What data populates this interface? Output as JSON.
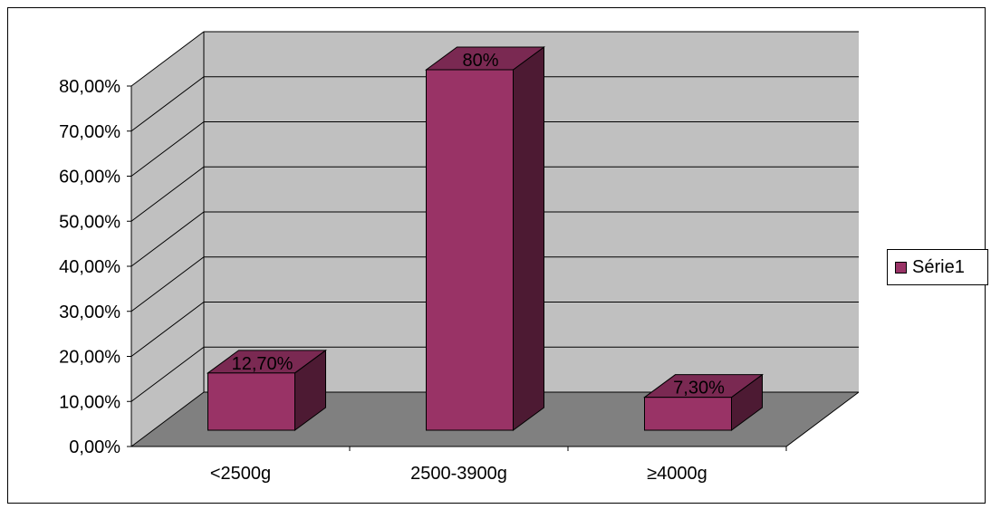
{
  "chart_data": {
    "type": "bar",
    "title": "",
    "xlabel": "",
    "ylabel": "",
    "categories": [
      "<2500g",
      "2500-3900g",
      "≥4000g"
    ],
    "series": [
      {
        "name": "Série1",
        "values": [
          12.7,
          80,
          7.3
        ],
        "labels": [
          "12,70%",
          "80%",
          "7,30%"
        ]
      }
    ],
    "ylim": [
      0,
      80
    ],
    "yticks": [
      {
        "value": 0,
        "label": "0,00%"
      },
      {
        "value": 10,
        "label": "10,00%"
      },
      {
        "value": 20,
        "label": "20,00%"
      },
      {
        "value": 30,
        "label": "30,00%"
      },
      {
        "value": 40,
        "label": "40,00%"
      },
      {
        "value": 50,
        "label": "50,00%"
      },
      {
        "value": 60,
        "label": "60,00%"
      },
      {
        "value": 70,
        "label": "70,00%"
      },
      {
        "value": 80,
        "label": "80,00%"
      }
    ],
    "grid": true,
    "three_d": true,
    "legend_position": "right",
    "colors": {
      "bar_front": "#993366",
      "bar_side": "#4d1a33",
      "bar_top": "#7a2952",
      "wall": "#c0c0c0",
      "floor": "#808080"
    }
  }
}
